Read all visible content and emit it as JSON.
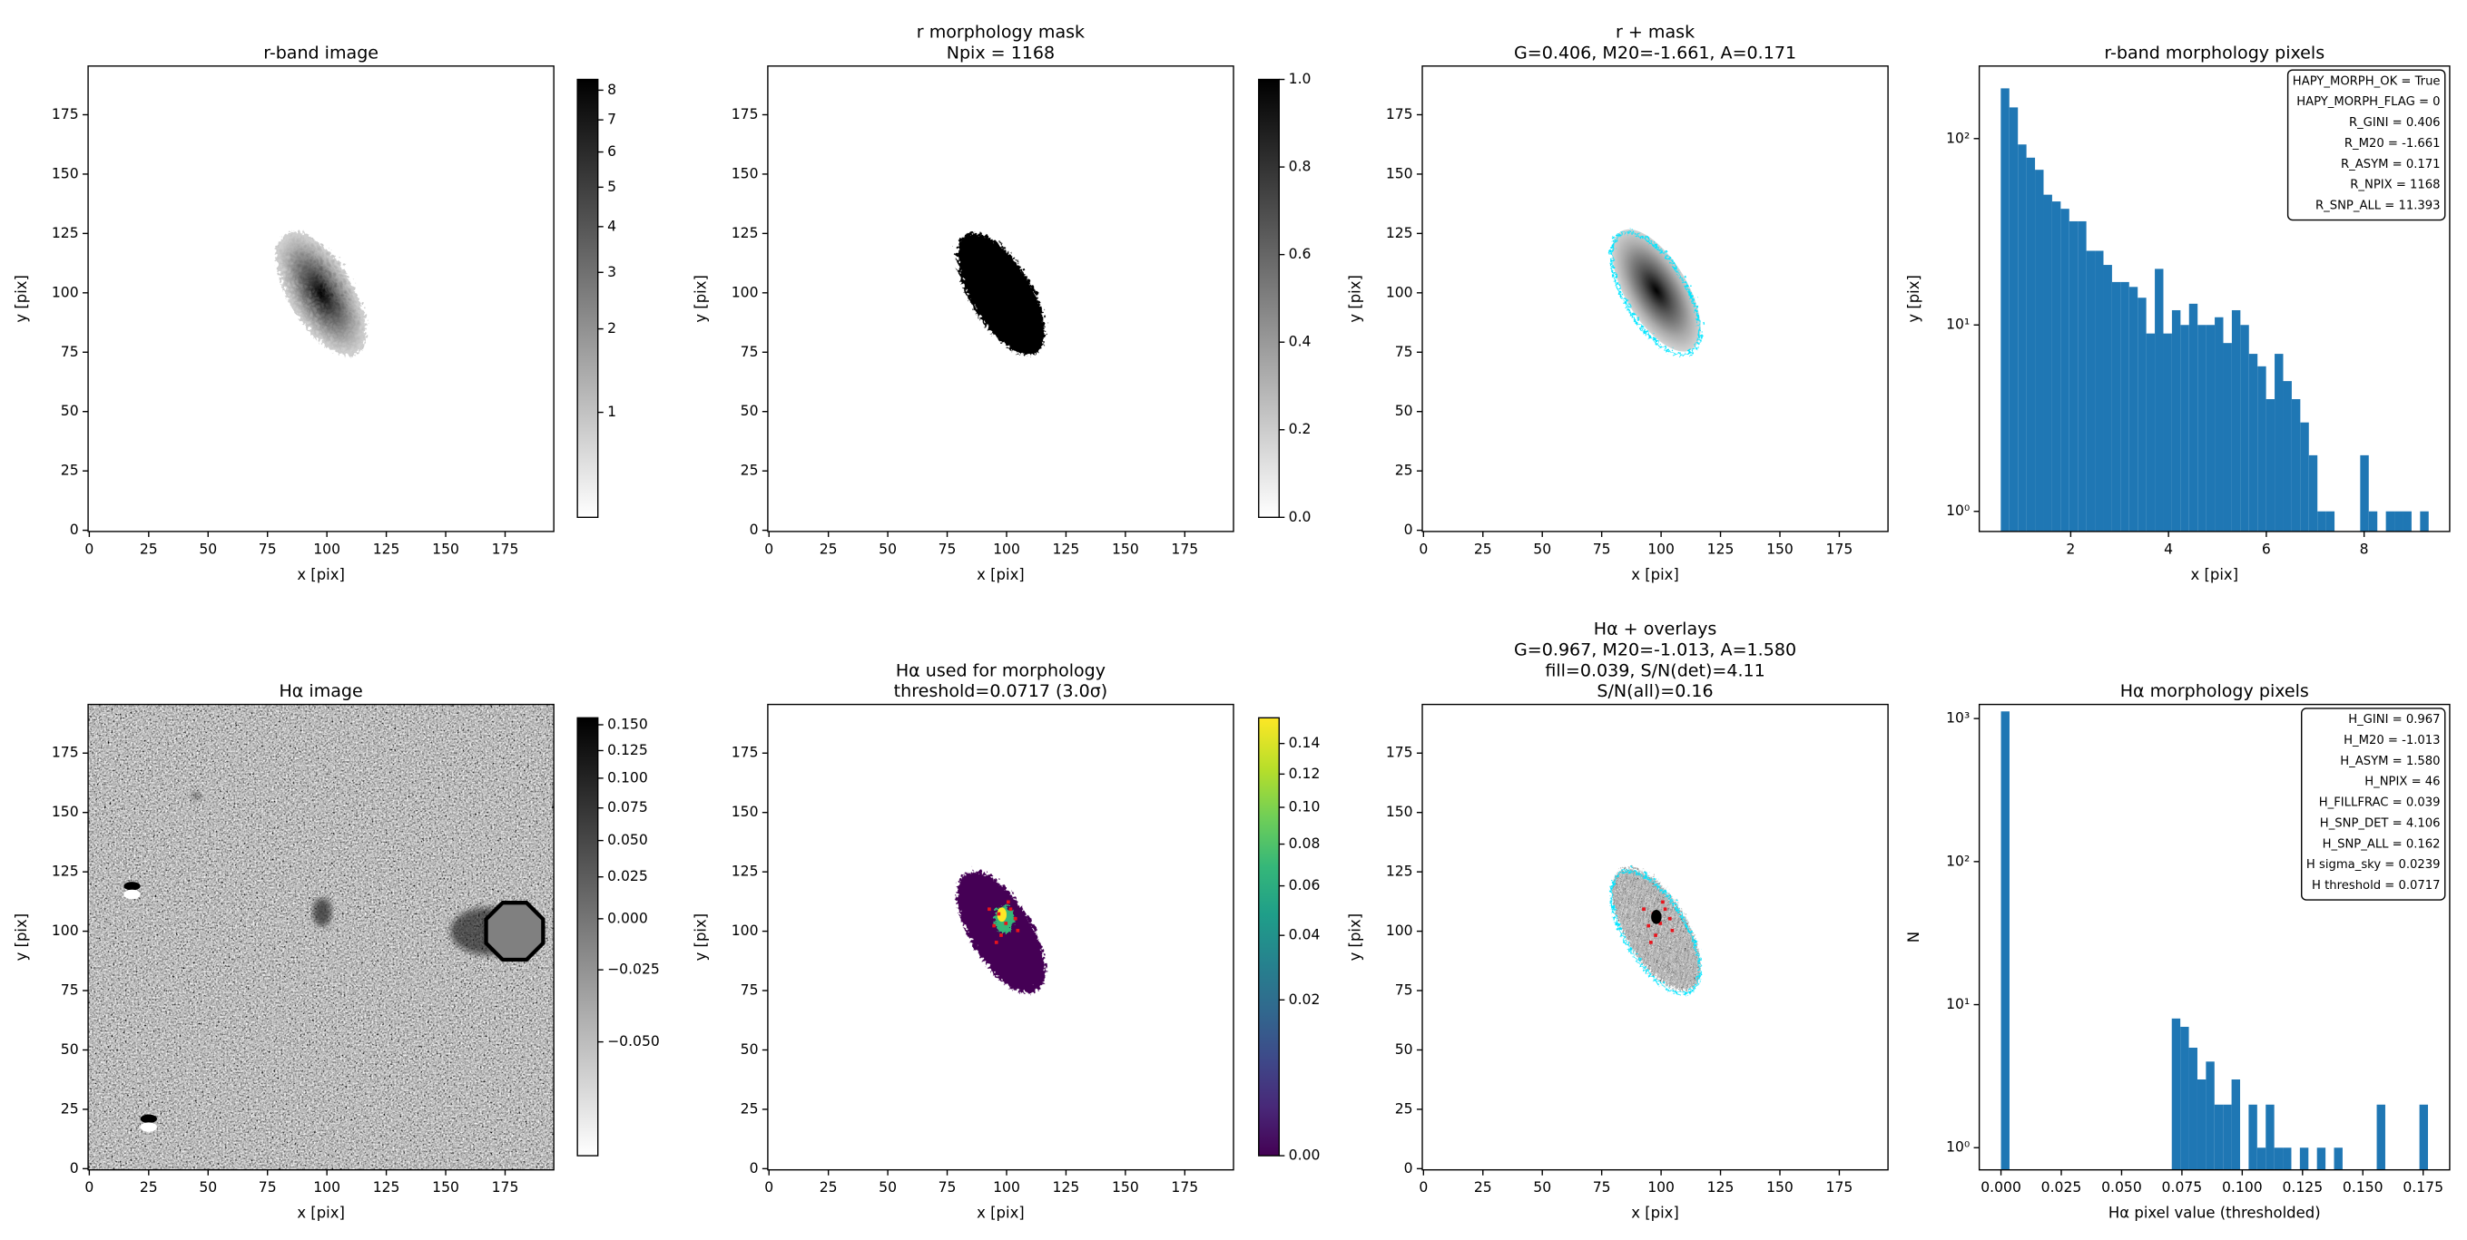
{
  "chart_data": [
    {
      "type": "image",
      "title": [
        "r-band image"
      ],
      "xlabel": "x [pix]",
      "ylabel": "y [pix]",
      "xlim": [
        -0.5,
        195.5
      ],
      "ylim": [
        -0.5,
        195.5
      ],
      "xticks": [
        0,
        25,
        50,
        75,
        100,
        125,
        150,
        175
      ],
      "yticks": [
        0,
        25,
        50,
        75,
        100,
        125,
        150,
        175
      ],
      "colorbar": {
        "cmap": "gray_r",
        "scale": "sqrt",
        "clim": [
          0.55,
          8.38
        ],
        "ticks": [
          1,
          2,
          3,
          4,
          5,
          6,
          7,
          8
        ]
      }
    },
    {
      "type": "image",
      "title": [
        "r morphology mask",
        "Npix = 1168"
      ],
      "xlabel": "x [pix]",
      "ylabel": "y [pix]",
      "xlim": [
        -0.5,
        195.5
      ],
      "ylim": [
        -0.5,
        195.5
      ],
      "xticks": [
        0,
        25,
        50,
        75,
        100,
        125,
        150,
        175
      ],
      "yticks": [
        0,
        25,
        50,
        75,
        100,
        125,
        150,
        175
      ],
      "colorbar": {
        "cmap": "gray_r",
        "scale": "linear",
        "clim": [
          0,
          1
        ],
        "ticks": [
          {
            "value": 0,
            "label": "0.0"
          },
          0.2,
          0.4,
          0.6,
          0.8,
          {
            "value": 1,
            "label": "1.0"
          }
        ]
      }
    },
    {
      "type": "image",
      "title": [
        "r + mask",
        "G=0.406, M20=-1.661, A=0.171"
      ],
      "xlabel": "x [pix]",
      "ylabel": "y [pix]",
      "xlim": [
        -0.5,
        195.5
      ],
      "ylim": [
        -0.5,
        195.5
      ],
      "xticks": [
        0,
        25,
        50,
        75,
        100,
        125,
        150,
        175
      ],
      "yticks": [
        0,
        25,
        50,
        75,
        100,
        125,
        150,
        175
      ]
    },
    {
      "type": "histogram",
      "title": [
        "r-band morphology pixels"
      ],
      "xlabel": "x [pix]",
      "ylabel": "y [pix]",
      "bins": [
        0.57,
        0.745,
        0.92,
        1.095,
        1.27,
        1.445,
        1.62,
        1.795,
        1.97,
        2.145,
        2.32,
        2.495,
        2.67,
        2.845,
        3.02,
        3.195,
        3.37,
        3.545,
        3.72,
        3.895,
        4.07,
        4.245,
        4.42,
        4.595,
        4.77,
        4.945,
        5.12,
        5.295,
        5.47,
        5.645,
        5.82,
        5.995,
        6.17,
        6.345,
        6.52,
        6.695,
        6.87,
        7.045,
        7.22,
        7.395,
        7.57,
        7.745,
        7.92,
        8.095,
        8.27,
        8.445,
        8.62,
        8.795,
        8.97,
        9.145,
        9.32
      ],
      "values": [
        186,
        147,
        93,
        79,
        68,
        50,
        46,
        42,
        36,
        36,
        25,
        25,
        21,
        17,
        17,
        16,
        14,
        9,
        20,
        9,
        12,
        10,
        13,
        10,
        10,
        11,
        8,
        12,
        10,
        7,
        6,
        4,
        7,
        5,
        4,
        3,
        2,
        1,
        1,
        0,
        0,
        0,
        2,
        1,
        0,
        1,
        1,
        1,
        0,
        1
      ],
      "color": "#1f77b4",
      "log_y": true,
      "xlim": [
        0.13,
        9.75
      ],
      "xticks": [
        2,
        4,
        6,
        8
      ],
      "ylim": [
        0.78,
        245
      ],
      "yticks": [
        {
          "value": 1,
          "label": "10⁰"
        },
        {
          "value": 10,
          "label": "10¹"
        },
        {
          "value": 100,
          "label": "10²"
        }
      ],
      "annotation": [
        "HAPY_MORPH_OK = True",
        "HAPY_MORPH_FLAG = 0",
        "R_GINI = 0.406",
        "R_M20 = -1.661",
        "R_ASYM = 0.171",
        "R_NPIX = 1168",
        "R_SNP_ALL = 11.393"
      ]
    },
    {
      "type": "image",
      "title": [
        "Hα image"
      ],
      "xlabel": "x [pix]",
      "ylabel": "y [pix]",
      "xlim": [
        -0.5,
        195.5
      ],
      "ylim": [
        -0.5,
        195.5
      ],
      "xticks": [
        0,
        25,
        50,
        75,
        100,
        125,
        150,
        175
      ],
      "yticks": [
        0,
        25,
        50,
        75,
        100,
        125,
        150,
        175
      ],
      "colorbar": {
        "cmap": "gray_r",
        "scale": "sqrt",
        "clim": [
          -0.065,
          0.157
        ],
        "ticks": [
          {
            "value": 0.15,
            "label": "0.150"
          },
          0.125,
          {
            "value": 0.1,
            "label": "0.100"
          },
          0.075,
          {
            "value": 0.05,
            "label": "0.050"
          },
          0.025,
          {
            "value": 0,
            "label": "0.000"
          },
          {
            "value": -0.025,
            "label": "−0.025"
          },
          {
            "value": -0.05,
            "label": "−0.050"
          }
        ]
      }
    },
    {
      "type": "image",
      "title": [
        "Hα used for morphology",
        "threshold=0.0717 (3.0σ)"
      ],
      "xlabel": "x [pix]",
      "ylabel": "y [pix]",
      "xlim": [
        -0.5,
        195.5
      ],
      "ylim": [
        -0.5,
        195.5
      ],
      "xticks": [
        0,
        25,
        50,
        75,
        100,
        125,
        150,
        175
      ],
      "yticks": [
        0,
        25,
        50,
        75,
        100,
        125,
        150,
        175
      ],
      "colorbar": {
        "cmap": "viridis",
        "scale": "sqrt",
        "clim": [
          0,
          0.158
        ],
        "ticks": [
          {
            "value": 0,
            "label": "0.00"
          },
          0.02,
          0.04,
          0.06,
          0.08,
          {
            "value": 0.1,
            "label": "0.10"
          },
          0.12,
          0.14
        ]
      }
    },
    {
      "type": "image",
      "title": [
        "Hα + overlays",
        "G=0.967, M20=-1.013, A=1.580",
        "fill=0.039, S/N(det)=4.11",
        "S/N(all)=0.16"
      ],
      "xlabel": "x [pix]",
      "ylabel": "y [pix]",
      "xlim": [
        -0.5,
        195.5
      ],
      "ylim": [
        -0.5,
        195.5
      ],
      "xticks": [
        0,
        25,
        50,
        75,
        100,
        125,
        150,
        175
      ],
      "yticks": [
        0,
        25,
        50,
        75,
        100,
        125,
        150,
        175
      ]
    },
    {
      "type": "histogram",
      "title": [
        "Hα morphology pixels"
      ],
      "xlabel": "Hα pixel value (thresholded)",
      "ylabel": "N",
      "bins": [
        0,
        0.00354,
        0.00708,
        0.01062,
        0.01416,
        0.0177,
        0.02124,
        0.02478,
        0.02832,
        0.03186,
        0.0354,
        0.03894,
        0.04248,
        0.04602,
        0.04956,
        0.0531,
        0.05664,
        0.06018,
        0.06372,
        0.06726,
        0.0708,
        0.07434,
        0.07788,
        0.08142,
        0.08496,
        0.0885,
        0.09204,
        0.09558,
        0.09912,
        0.10266,
        0.1062,
        0.10974,
        0.11328,
        0.11682,
        0.12036,
        0.1239,
        0.12744,
        0.13098,
        0.13452,
        0.13806,
        0.1416,
        0.14514,
        0.14868,
        0.15222,
        0.15576,
        0.1593,
        0.16284,
        0.16638,
        0.16992,
        0.17346,
        0.177
      ],
      "values": [
        1122,
        0,
        0,
        0,
        0,
        0,
        0,
        0,
        0,
        0,
        0,
        0,
        0,
        0,
        0,
        0,
        0,
        0,
        0,
        0,
        8,
        7,
        5,
        3,
        4,
        2,
        2,
        3,
        0,
        2,
        1,
        2,
        1,
        1,
        0,
        1,
        0,
        1,
        0,
        1,
        0,
        0,
        0,
        0,
        2,
        0,
        0,
        0,
        0,
        2
      ],
      "color": "#1f77b4",
      "log_y": true,
      "xlim": [
        -0.009,
        0.186
      ],
      "xticks": [
        {
          "value": 0,
          "label": "0.000"
        },
        0.025,
        {
          "value": 0.05,
          "label": "0.050"
        },
        0.075,
        {
          "value": 0.1,
          "label": "0.100"
        },
        0.125,
        {
          "value": 0.15,
          "label": "0.150"
        },
        0.175
      ],
      "ylim": [
        0.7,
        1255
      ],
      "yticks": [
        {
          "value": 1,
          "label": "10⁰"
        },
        {
          "value": 10,
          "label": "10¹"
        },
        {
          "value": 100,
          "label": "10²"
        },
        {
          "value": 1000,
          "label": "10³"
        }
      ],
      "annotation": [
        "H_GINI = 0.967",
        "H_M20 = -1.013",
        "H_ASYM = 1.580",
        "H_NPIX = 46",
        "H_FILLFRAC = 0.039",
        "H_SNP_DET = 4.106",
        "H_SNP_ALL = 0.162",
        "H sigma_sky = 0.0239",
        "H threshold = 0.0717"
      ]
    }
  ]
}
